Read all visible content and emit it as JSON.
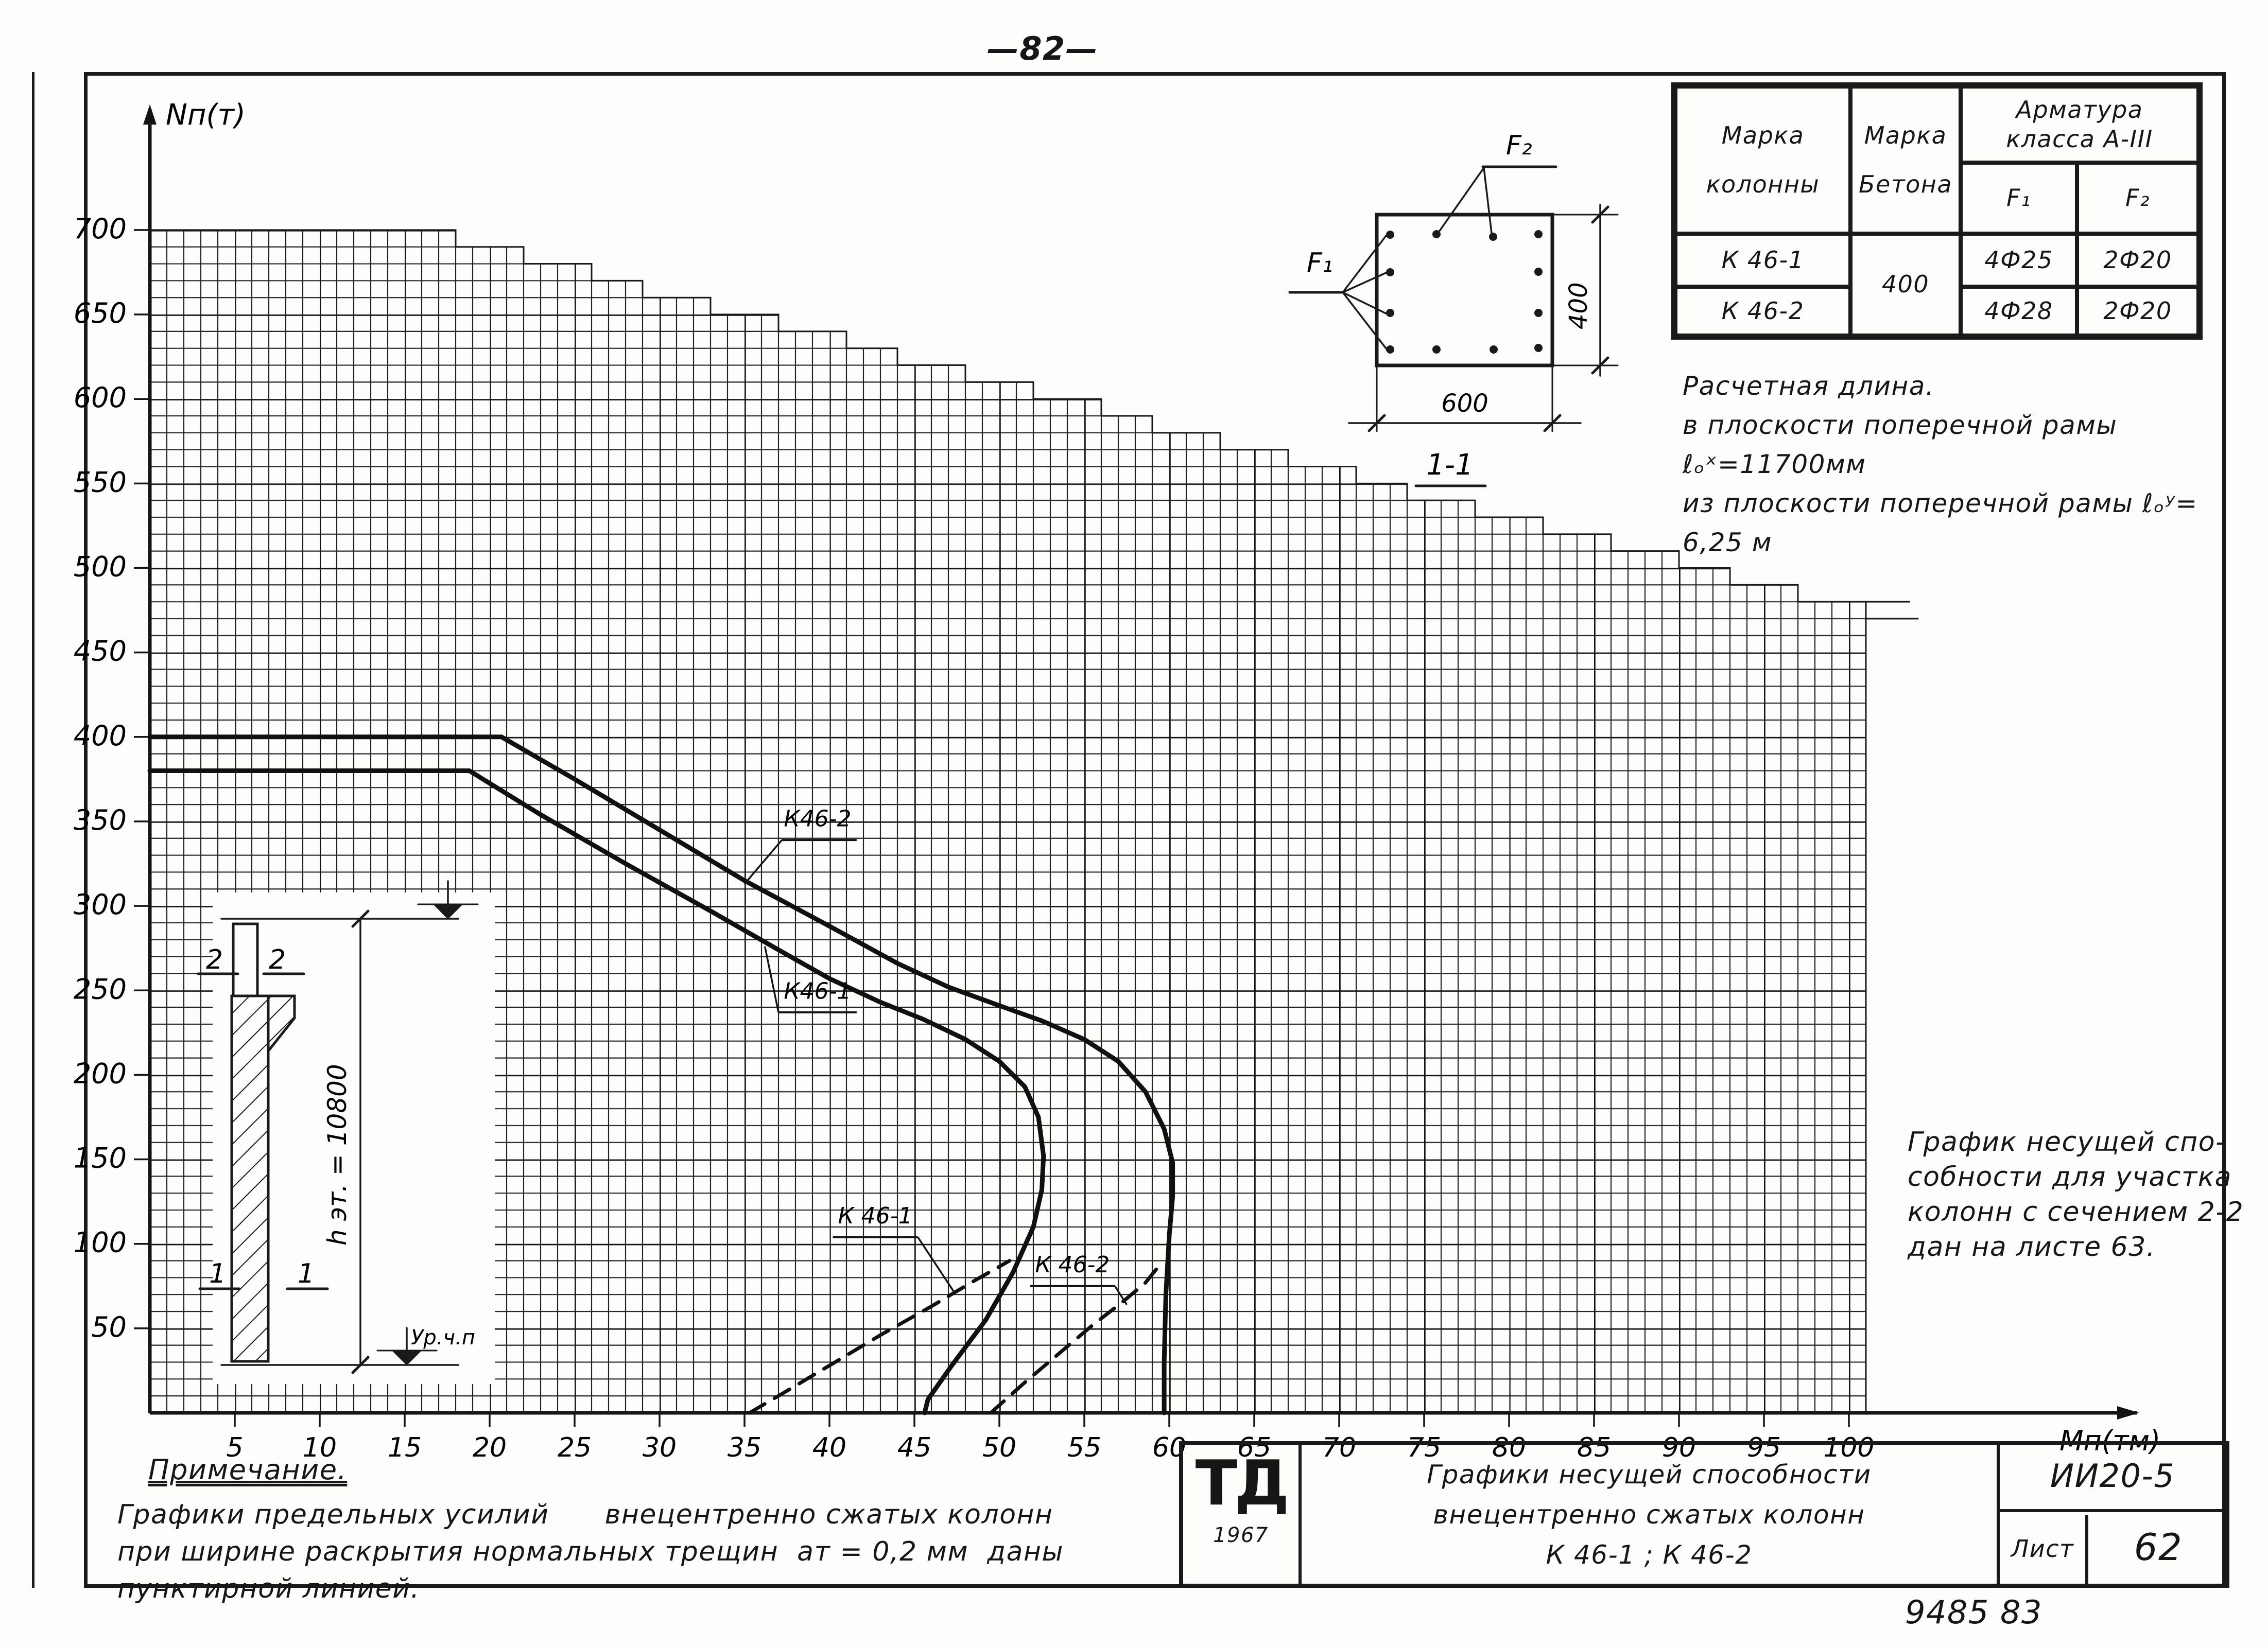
{
  "page": {
    "number": "—82—",
    "stamp": "9485 83"
  },
  "chart_data": {
    "type": "line",
    "title": "Графики несущей способности внецентренно сжатых колонн К 46-1, К 46-2",
    "xlabel": "Мп(тм)",
    "ylabel": "Nп(т)",
    "xlim": [
      0,
      105
    ],
    "ylim": [
      0,
      710
    ],
    "grid": "on",
    "x_ticks": [
      5,
      10,
      15,
      20,
      25,
      30,
      35,
      40,
      45,
      50,
      55,
      60,
      65,
      70,
      75,
      80,
      85,
      90,
      95,
      100
    ],
    "y_ticks": [
      50,
      100,
      150,
      200,
      250,
      300,
      350,
      400,
      450,
      500,
      550,
      600,
      650,
      700
    ],
    "grid_envelope": [
      [
        0,
        700
      ],
      [
        18,
        700
      ],
      [
        18,
        690
      ],
      [
        22,
        690
      ],
      [
        22,
        680
      ],
      [
        26,
        680
      ],
      [
        26,
        670
      ],
      [
        29,
        670
      ],
      [
        29,
        660
      ],
      [
        33,
        660
      ],
      [
        33,
        650
      ],
      [
        37,
        650
      ],
      [
        37,
        640
      ],
      [
        41,
        640
      ],
      [
        41,
        630
      ],
      [
        44,
        630
      ],
      [
        44,
        620
      ],
      [
        48,
        620
      ],
      [
        48,
        610
      ],
      [
        52,
        610
      ],
      [
        52,
        600
      ],
      [
        56,
        600
      ],
      [
        56,
        590
      ],
      [
        59,
        590
      ],
      [
        59,
        580
      ],
      [
        63,
        580
      ],
      [
        63,
        570
      ],
      [
        67,
        570
      ],
      [
        67,
        560
      ],
      [
        71,
        560
      ],
      [
        71,
        550
      ],
      [
        74,
        550
      ],
      [
        74,
        540
      ],
      [
        78,
        540
      ],
      [
        78,
        530
      ],
      [
        82,
        530
      ],
      [
        82,
        520
      ],
      [
        86,
        520
      ],
      [
        86,
        510
      ],
      [
        90,
        510
      ],
      [
        90,
        500
      ],
      [
        93,
        500
      ],
      [
        93,
        490
      ],
      [
        97,
        490
      ],
      [
        97,
        480
      ],
      [
        101,
        480
      ]
    ],
    "grid_whiskers": [
      [
        [
          101,
          480
        ],
        [
          103.6,
          480
        ]
      ],
      [
        [
          101,
          470
        ],
        [
          104.1,
          470
        ]
      ]
    ],
    "series": [
      {
        "name": "К46-2",
        "style": "solid",
        "points": [
          [
            0,
            400
          ],
          [
            20.7,
            400
          ],
          [
            25,
            375
          ],
          [
            30,
            345
          ],
          [
            35,
            315
          ],
          [
            40,
            288
          ],
          [
            44,
            266
          ],
          [
            47,
            252
          ],
          [
            50,
            241
          ],
          [
            52.5,
            232
          ],
          [
            55,
            221
          ],
          [
            57,
            208
          ],
          [
            58.6,
            190
          ],
          [
            59.7,
            168
          ],
          [
            60.2,
            148
          ],
          [
            60.2,
            128
          ],
          [
            60,
            105
          ],
          [
            59.8,
            70
          ],
          [
            59.7,
            30
          ],
          [
            59.7,
            0
          ]
        ]
      },
      {
        "name": "К46-1",
        "style": "solid",
        "points": [
          [
            0,
            380
          ],
          [
            18.8,
            380
          ],
          [
            23,
            354
          ],
          [
            28,
            325
          ],
          [
            33,
            297
          ],
          [
            37,
            274
          ],
          [
            40,
            257
          ],
          [
            43,
            243
          ],
          [
            45.5,
            233
          ],
          [
            48,
            221
          ],
          [
            50,
            208
          ],
          [
            51.5,
            193
          ],
          [
            52.3,
            175
          ],
          [
            52.6,
            152
          ],
          [
            52.5,
            132
          ],
          [
            52,
            110
          ],
          [
            50.8,
            83
          ],
          [
            49.2,
            55
          ],
          [
            47.2,
            28
          ],
          [
            45.8,
            8
          ],
          [
            45.6,
            0
          ]
        ]
      },
      {
        "name": "К 46-1 (ат=0,2 мм)",
        "style": "dashed",
        "points": [
          [
            35.3,
            0
          ],
          [
            37.5,
            13
          ],
          [
            40,
            28
          ],
          [
            43,
            46
          ],
          [
            46,
            63
          ],
          [
            48.5,
            78
          ],
          [
            50.6,
            90
          ]
        ]
      },
      {
        "name": "К 46-2 (ат=0,2 мм)",
        "style": "dashed",
        "points": [
          [
            49.5,
            0
          ],
          [
            51.5,
            18
          ],
          [
            53.5,
            35
          ],
          [
            55.5,
            52
          ],
          [
            57.3,
            66
          ],
          [
            58.6,
            77
          ],
          [
            59.4,
            87
          ]
        ]
      }
    ],
    "labels": [
      {
        "text": "К46-2",
        "x": 39.3,
        "y": 352,
        "ul": [
          37.2,
          41.6,
          339
        ],
        "leader": [
          [
            37.2,
            339
          ],
          [
            35.0,
            313
          ]
        ]
      },
      {
        "text": "К46-1",
        "x": 39.3,
        "y": 250,
        "ul": [
          37.0,
          41.6,
          237
        ],
        "leader": [
          [
            37.0,
            237
          ],
          [
            36.2,
            276
          ]
        ]
      },
      {
        "text": "К 46-1",
        "x": 42.7,
        "y": 117,
        "ul": [
          40.2,
          45.2,
          104
        ],
        "leader": [
          [
            45.2,
            104
          ],
          [
            47.3,
            72
          ]
        ]
      },
      {
        "text": "К 46-2",
        "x": 54.3,
        "y": 88,
        "ul": [
          51.8,
          56.8,
          75
        ],
        "leader": [
          [
            56.8,
            75
          ],
          [
            57.5,
            64
          ]
        ]
      }
    ]
  },
  "table": {
    "h_c1a": "Марка",
    "h_c1b": "колонны",
    "h_c2a": "Марка",
    "h_c2b": "Бетона",
    "h_c3a": "Арматура",
    "h_c3b": "класса  А-III",
    "h_f1": "F₁",
    "h_f2": "F₂",
    "concrete": "400",
    "rows": [
      {
        "mark": "К 46-1",
        "f1": "4Ф25",
        "f2": "2Ф20"
      },
      {
        "mark": "К 46-2",
        "f1": "4Ф28",
        "f2": "2Ф20"
      }
    ]
  },
  "section": {
    "f1": "F₁",
    "f2": "F₂",
    "w": "600",
    "h": "400",
    "label": "1-1"
  },
  "calc": {
    "l1": "Расчетная длина.",
    "l2": "в плоскости поперечной рамы ℓₒˣ=11700мм",
    "l3": "из плоскости поперечной рамы ℓₒʸ= 6,25 м"
  },
  "side_note": {
    "l1": "График несущей спо-",
    "l2": "собности для участка",
    "l3": "колонн с сечением 2-2",
    "l4": "дан на листе 63."
  },
  "inset": {
    "height_label": "h эт. = 10800",
    "level_label": "Ур.ч.п",
    "mark2": "2",
    "mark1": "1"
  },
  "bottom_note": {
    "heading": "Примечание.",
    "l1": "Графики предельных усилий      внецентренно сжатых колонн",
    "l2": "при ширине раскрытия нормальных трещин  ат = 0,2 мм  даны",
    "l3": "пунктирной линией."
  },
  "title_block": {
    "logo": "ТД",
    "year": "1967",
    "l1": "Графики несущей способности",
    "l2": "внецентренно сжатых колонн",
    "l3": "К 46-1   ;   К 46-2",
    "code": "ИИ20-5",
    "sheet_label": "Лист",
    "sheet_no": "62"
  }
}
